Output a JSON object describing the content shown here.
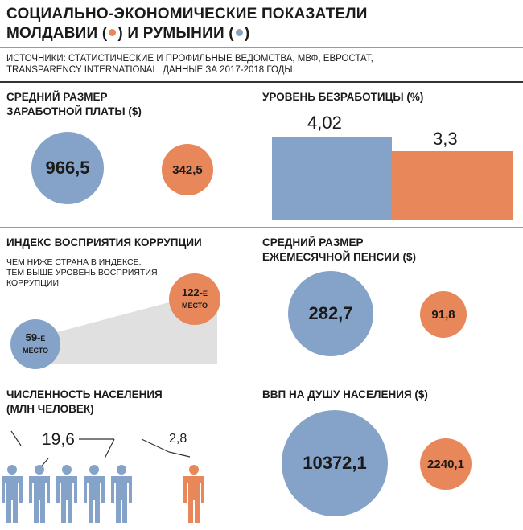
{
  "header": {
    "title_line1": "СОЦИАЛЬНО-ЭКОНОМИЧЕСКИЕ ПОКАЗАТЕЛИ",
    "title_line2_prefix": "МОЛДАВИИ (",
    "title_line2_mid": ") И РУМЫНИИ (",
    "title_line2_suffix": ")",
    "sources_line1": "ИСТОЧНИКИ: СТАТИСТИЧЕСКИЕ И ПРОФИЛЬНЫЕ ВЕДОМСТВА, МВФ, ЕВРОСТАТ,",
    "sources_line2": "TRANSPARENCY INTERNATIONAL, ДАННЫЕ ЗА 2017-2018 ГОДЫ."
  },
  "colors": {
    "romania": "#85a2c9",
    "moldova": "#e8875a",
    "gap": "#e0e0e0"
  },
  "chart_data": [
    {
      "type": "bubble",
      "title": "СРЕДНИЙ РАЗМЕР ЗАРАБОТНОЙ ПЛАТЫ ($)",
      "series": [
        {
          "name": "Румыния",
          "value": 966.5,
          "label": "966,5"
        },
        {
          "name": "Молдавия",
          "value": 342.5,
          "label": "342,5"
        }
      ]
    },
    {
      "type": "bar",
      "title": "УРОВЕНЬ БЕЗРАБОТИЦЫ (%)",
      "ylim": [
        0,
        4.02
      ],
      "series": [
        {
          "name": "Румыния",
          "value": 4.02,
          "label": "4,02"
        },
        {
          "name": "Молдавия",
          "value": 3.3,
          "label": "3,3"
        }
      ]
    },
    {
      "type": "rank",
      "title": "ИНДЕКС ВОСПРИЯТИЯ КОРРУПЦИИ",
      "note_line1": "ЧЕМ НИЖЕ СТРАНА В ИНДЕКСЕ,",
      "note_line2": "ТЕМ ВЫШЕ УРОВЕНЬ ВОСПРИЯТИЯ",
      "note_line3": "КОРРУПЦИИ",
      "series": [
        {
          "name": "Румыния",
          "value": 59,
          "num": "59-",
          "suffix": "Е",
          "word": "МЕСТО"
        },
        {
          "name": "Молдавия",
          "value": 122,
          "num": "122-",
          "suffix": "Е",
          "word": "МЕСТО"
        }
      ]
    },
    {
      "type": "bubble",
      "title": "СРЕДНИЙ РАЗМЕР ЕЖЕМЕСЯЧНОЙ ПЕНСИИ ($)",
      "series": [
        {
          "name": "Румыния",
          "value": 282.7,
          "label": "282,7"
        },
        {
          "name": "Молдавия",
          "value": 91.8,
          "label": "91,8"
        }
      ]
    },
    {
      "type": "pictogram",
      "title": "ЧИСЛЕННОСТЬ НАСЕЛЕНИЯ (МЛН ЧЕЛОВЕК)",
      "series": [
        {
          "name": "Румыния",
          "value": 19.6,
          "label": "19,6",
          "icons": 5
        },
        {
          "name": "Молдавия",
          "value": 2.8,
          "label": "2,8",
          "icons": 1
        }
      ]
    },
    {
      "type": "bubble",
      "title": "ВВП НА ДУШУ НАСЕЛЕНИЯ ($)",
      "series": [
        {
          "name": "Румыния",
          "value": 10372.1,
          "label": "10372,1"
        },
        {
          "name": "Молдавия",
          "value": 2240.1,
          "label": "2240,1"
        }
      ]
    }
  ],
  "sections": {
    "salary_line1": "СРЕДНИЙ РАЗМЕР",
    "salary_line2": "ЗАРАБОТНОЙ ПЛАТЫ ($)",
    "unemp": "УРОВЕНЬ БЕЗРАБОТИЦЫ (%)",
    "corr": "ИНДЕКС ВОСПРИЯТИЯ КОРРУПЦИИ",
    "pension_line1": "СРЕДНИЙ РАЗМЕР",
    "pension_line2": "ЕЖЕМЕСЯЧНОЙ ПЕНСИИ ($)",
    "pop_line1": "ЧИСЛЕННОСТЬ НАСЕЛЕНИЯ",
    "pop_line2": "(МЛН ЧЕЛОВЕК)",
    "gdp": "ВВП НА ДУШУ НАСЕЛЕНИЯ ($)"
  }
}
